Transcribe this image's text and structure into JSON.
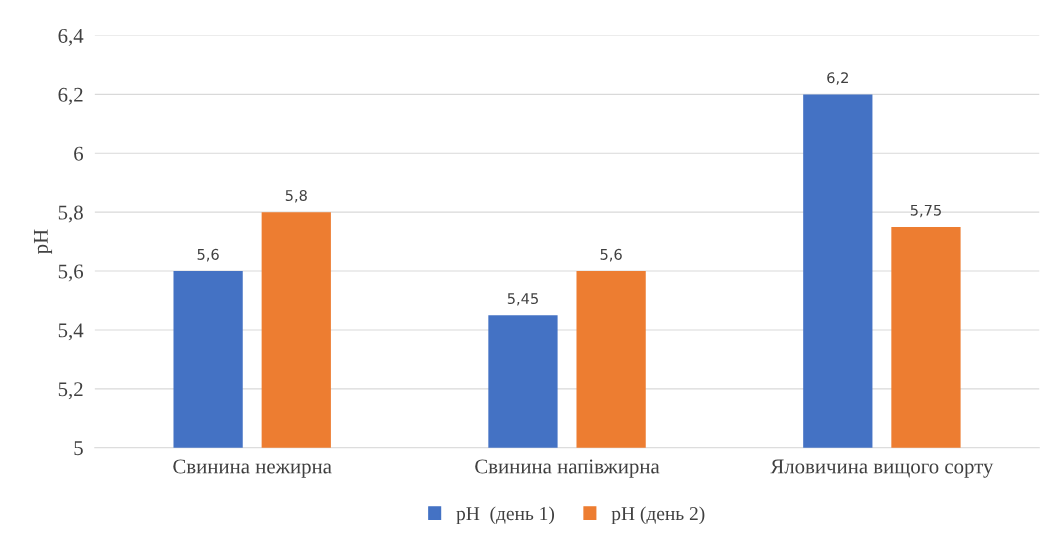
{
  "chart_data": {
    "type": "bar",
    "ylabel": "pH",
    "categories": [
      "Свинина нежирна",
      "Свинина напівжирна",
      "Яловичина вищого сорту"
    ],
    "series": [
      {
        "name": "pH  (день 1)",
        "color": "#4472c4",
        "values": [
          5.6,
          5.45,
          6.2
        ],
        "value_labels": [
          "5,6",
          "5,45",
          "6,2"
        ]
      },
      {
        "name": "pH (день 2)",
        "color": "#ed7d31",
        "values": [
          5.8,
          5.6,
          5.75
        ],
        "value_labels": [
          "5,8",
          "5,6",
          "5,75"
        ]
      }
    ],
    "ylim": [
      5,
      6.4
    ],
    "yticks": [
      5,
      {
        "value": 5.2,
        "label": "5,2"
      },
      {
        "value": 5.4,
        "label": "5,4"
      },
      {
        "value": 5.6,
        "label": "5,6"
      },
      {
        "value": 5.8,
        "label": "5,8"
      },
      6,
      {
        "value": 6.2,
        "label": "6,2"
      },
      {
        "value": 6.4,
        "label": "6,4"
      }
    ],
    "grid": "y",
    "legend": "bottom"
  }
}
